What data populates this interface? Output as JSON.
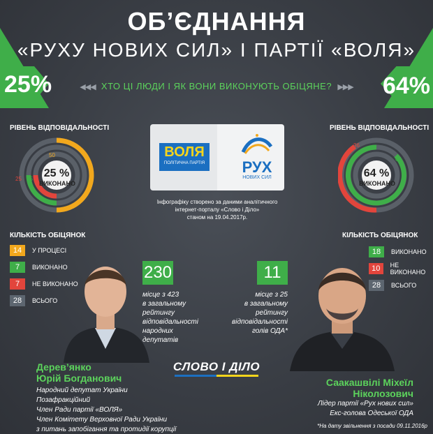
{
  "header": {
    "title": "ОБ’ЄДНАННЯ",
    "subtitle": "«РУХУ НОВИХ СИЛ» І ПАРТІЇ «ВОЛЯ»",
    "question": "ХТО ЦІ ЛЮДИ І ЯК ВОНИ ВИКОНУЮТЬ ОБІЦЯНЕ?",
    "left_percent": "25%",
    "right_percent": "64%"
  },
  "colors": {
    "green": "#3fae49",
    "red": "#e2453c",
    "orange": "#f2a81d",
    "gray": "#5d6670"
  },
  "left": {
    "responsibility_title": "РІВЕНЬ ВІДПОВІДАЛЬНОСТІ",
    "center_pct": "25 %",
    "center_label": "ВИКОНАНО",
    "ring_labels": {
      "outer": "50",
      "middle": "25",
      "inner": "25"
    },
    "counts_title": "КІЛЬКІСТЬ ОБІЦЯНОК",
    "legend": [
      {
        "value": "14",
        "label": "У ПРОЦЕСІ",
        "color": "#f2a81d"
      },
      {
        "value": "7",
        "label": "ВИКОНАНО",
        "color": "#3fae49"
      },
      {
        "value": "7",
        "label": "НЕ ВИКОНАНО",
        "color": "#e2453c"
      },
      {
        "value": "28",
        "label": "ВСЬОГО",
        "color": "#5d6670"
      }
    ],
    "rank": "230",
    "rank_text": [
      "місце з 423",
      "в загальному",
      "рейтингу",
      "відповідальності",
      "народних",
      "депутатів"
    ],
    "name_line1": "Дерев’янко",
    "name_line2": "Юрій Богданович",
    "desc": [
      "Народний депутат України",
      "Позафракційний",
      "Член Ради партії «ВОЛЯ»",
      "Член Комітету Верховної Ради України",
      "з питань запобігання та протидії корупції"
    ]
  },
  "right": {
    "responsibility_title": "РІВЕНЬ ВІДПОВІДАЛЬНОСТІ",
    "center_pct": "64 %",
    "center_label": "ВИКОНАНО",
    "ring_labels": {
      "outer": "36",
      "middle": "64"
    },
    "counts_title": "КІЛЬКІСТЬ ОБІЦЯНОК",
    "legend": [
      {
        "value": "18",
        "label": "ВИКОНАНО",
        "color": "#3fae49"
      },
      {
        "value": "10",
        "label": "НЕ ВИКОНАНО",
        "color": "#e2453c"
      },
      {
        "value": "28",
        "label": "ВСЬОГО",
        "color": "#5d6670"
      }
    ],
    "rank": "11",
    "rank_text": [
      "місце з 25",
      "в загальному",
      "рейтингу",
      "відповідальності",
      "голів ОДА*"
    ],
    "name_line1": "Саакашвілі Міхеїл",
    "name_line2": "Ніколозович",
    "desc": [
      "Лідер партії «Рух нових сил»",
      "Екс-голова Одеської ОДА"
    ],
    "note": "*На дату звільнення з посади 09.11.2016р"
  },
  "center": {
    "logo_left_text": "ВОЛЯ",
    "logo_left_sub": "ПОЛІТИЧНА ПАРТІЯ",
    "logo_right_text": "РУХ",
    "logo_right_sub": "НОВИХ СИЛ",
    "source": [
      "Інфографіку створено за даними аналітичного",
      "інтернет-порталу «Слово і Діло»",
      "станом на 19.04.2017р."
    ],
    "brand": "СЛОВО І ДІЛО"
  }
}
